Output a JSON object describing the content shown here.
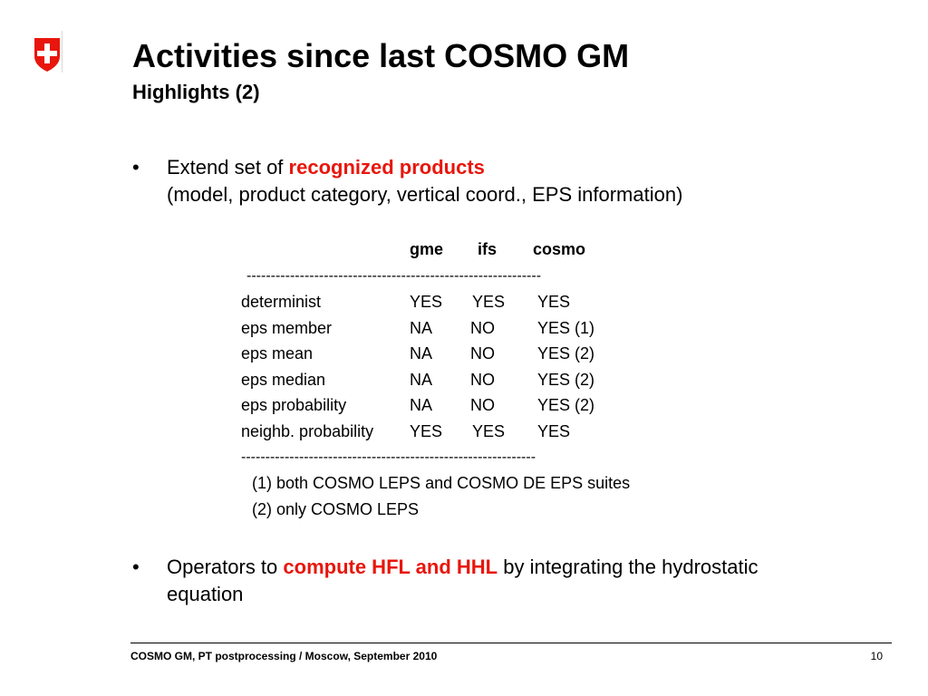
{
  "logo": {
    "icon": "swiss-cross-icon",
    "color": "#e8160c"
  },
  "title": "Activities since last COSMO GM",
  "subtitle": "Highlights (2)",
  "bullets": [
    {
      "symbol": "•",
      "prefix": "Extend set of ",
      "highlight": "recognized products",
      "line2": "(model, product category, vertical coord., EPS information)"
    },
    {
      "symbol": "•",
      "prefix": "Operators to ",
      "highlight": "compute HFL and HHL",
      "suffix": " by integrating the hydrostatic",
      "line2": "equation"
    }
  ],
  "table": {
    "headers": [
      "gme",
      "ifs",
      "cosmo"
    ],
    "separator": "-------------------------------------------------------------",
    "rows": [
      {
        "label": "determinist",
        "gme": "YES",
        "ifs": "YES",
        "cosmo": "YES"
      },
      {
        "label": "eps member",
        "gme": "NA",
        "ifs": "NO",
        "cosmo": "YES (1)"
      },
      {
        "label": "eps mean",
        "gme": "NA",
        "ifs": "NO",
        "cosmo": "YES (2)"
      },
      {
        "label": "eps median",
        "gme": "NA",
        "ifs": "NO",
        "cosmo": "YES (2)"
      },
      {
        "label": "eps probability",
        "gme": "NA",
        "ifs": "NO",
        "cosmo": "YES (2)"
      },
      {
        "label": "neighb. probability",
        "gme": "YES",
        "ifs": "YES",
        "cosmo": "YES"
      }
    ],
    "notes": [
      "(1) both COSMO LEPS and COSMO DE EPS suites",
      "(2) only COSMO LEPS"
    ]
  },
  "footer": {
    "left": "COSMO GM, PT postprocessing / Moscow, September 2010",
    "page": "10"
  }
}
